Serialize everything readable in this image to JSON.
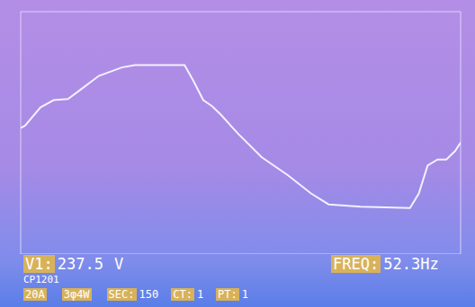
{
  "chart_data": {
    "type": "line",
    "color": "#f4f0ff",
    "grid": true,
    "tick_labels": false,
    "x": [
      0,
      0.04,
      0.18,
      0.3,
      0.43,
      0.55,
      0.71,
      0.92,
      1.04,
      1.49,
      1.57,
      1.66,
      1.74,
      1.82,
      1.98,
      2.19,
      2.43,
      2.64,
      2.8,
      3.09,
      3.54,
      3.62,
      3.7,
      3.79,
      3.87,
      3.95,
      4.0
    ],
    "values": [
      0.04,
      0.06,
      0.21,
      0.27,
      0.28,
      0.36,
      0.47,
      0.54,
      0.56,
      0.56,
      0.43,
      0.27,
      0.22,
      0.15,
      -0.01,
      -0.2,
      -0.35,
      -0.5,
      -0.59,
      -0.61,
      -0.62,
      -0.5,
      -0.27,
      -0.22,
      -0.22,
      -0.15,
      -0.08
    ],
    "xlim": [
      0,
      4
    ],
    "xticks": [
      0,
      1,
      2,
      3,
      4
    ],
    "ylim": [
      -1,
      1
    ],
    "yticks": [
      -1,
      0,
      1
    ],
    "readouts": [
      {
        "label": "V1:",
        "value": 237.5,
        "unit": "V"
      },
      {
        "label": "FREQ:",
        "value": 52.3,
        "unit": "Hz"
      }
    ],
    "device": "CP1201",
    "status_bar": [
      {
        "label": "20A"
      },
      {
        "label": "3φ4W"
      },
      {
        "label": "SEC:",
        "value": 150
      },
      {
        "label": "CT:",
        "value": 1
      },
      {
        "label": "PT:",
        "value": 1
      }
    ]
  }
}
